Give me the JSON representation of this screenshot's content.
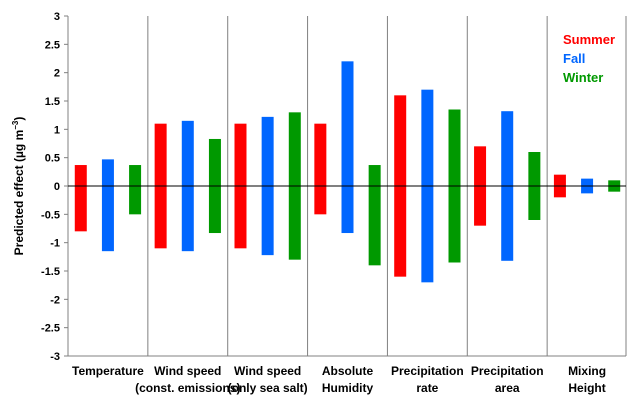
{
  "chart_data": {
    "type": "bar",
    "subtype": "floating range bars",
    "ylabel_main": "Predicted effect (µg m",
    "ylabel_sup": "−3",
    "ylabel_close": ")",
    "ylim": [
      -3,
      3
    ],
    "ytick_step": 0.5,
    "yticks": [
      "3",
      "2.5",
      "2",
      "1.5",
      "1",
      "0.5",
      "0",
      "-0.5",
      "-1",
      "-1.5",
      "-2",
      "-2.5",
      "-3"
    ],
    "grid": false,
    "category_dividers": true,
    "legend_position": "top-right",
    "categories": [
      [
        "Temperature"
      ],
      [
        "Wind speed",
        "(const. emissions)"
      ],
      [
        "Wind speed",
        "(only sea salt)"
      ],
      [
        "Absolute",
        "Humidity"
      ],
      [
        "Precipitation",
        "rate"
      ],
      [
        "Precipitation",
        "area"
      ],
      [
        "Mixing",
        "Height"
      ]
    ],
    "series": [
      {
        "name": "Summer",
        "color": "#ff0000",
        "ranges": [
          [
            -0.8,
            0.37
          ],
          [
            -1.1,
            1.1
          ],
          [
            -1.1,
            1.1
          ],
          [
            -0.5,
            1.1
          ],
          [
            -1.6,
            1.6
          ],
          [
            -0.7,
            0.7
          ],
          [
            -0.2,
            0.2
          ]
        ]
      },
      {
        "name": "Fall",
        "color": "#0066ff",
        "ranges": [
          [
            -1.15,
            0.47
          ],
          [
            -1.15,
            1.15
          ],
          [
            -1.22,
            1.22
          ],
          [
            -0.83,
            2.2
          ],
          [
            -1.7,
            1.7
          ],
          [
            -1.32,
            1.32
          ],
          [
            -0.13,
            0.13
          ]
        ]
      },
      {
        "name": "Winter",
        "color": "#009900",
        "ranges": [
          [
            -0.5,
            0.37
          ],
          [
            -0.83,
            0.83
          ],
          [
            -1.3,
            1.3
          ],
          [
            -1.4,
            0.37
          ],
          [
            -1.35,
            1.35
          ],
          [
            -0.6,
            0.6
          ],
          [
            -0.1,
            0.1
          ]
        ]
      }
    ]
  }
}
